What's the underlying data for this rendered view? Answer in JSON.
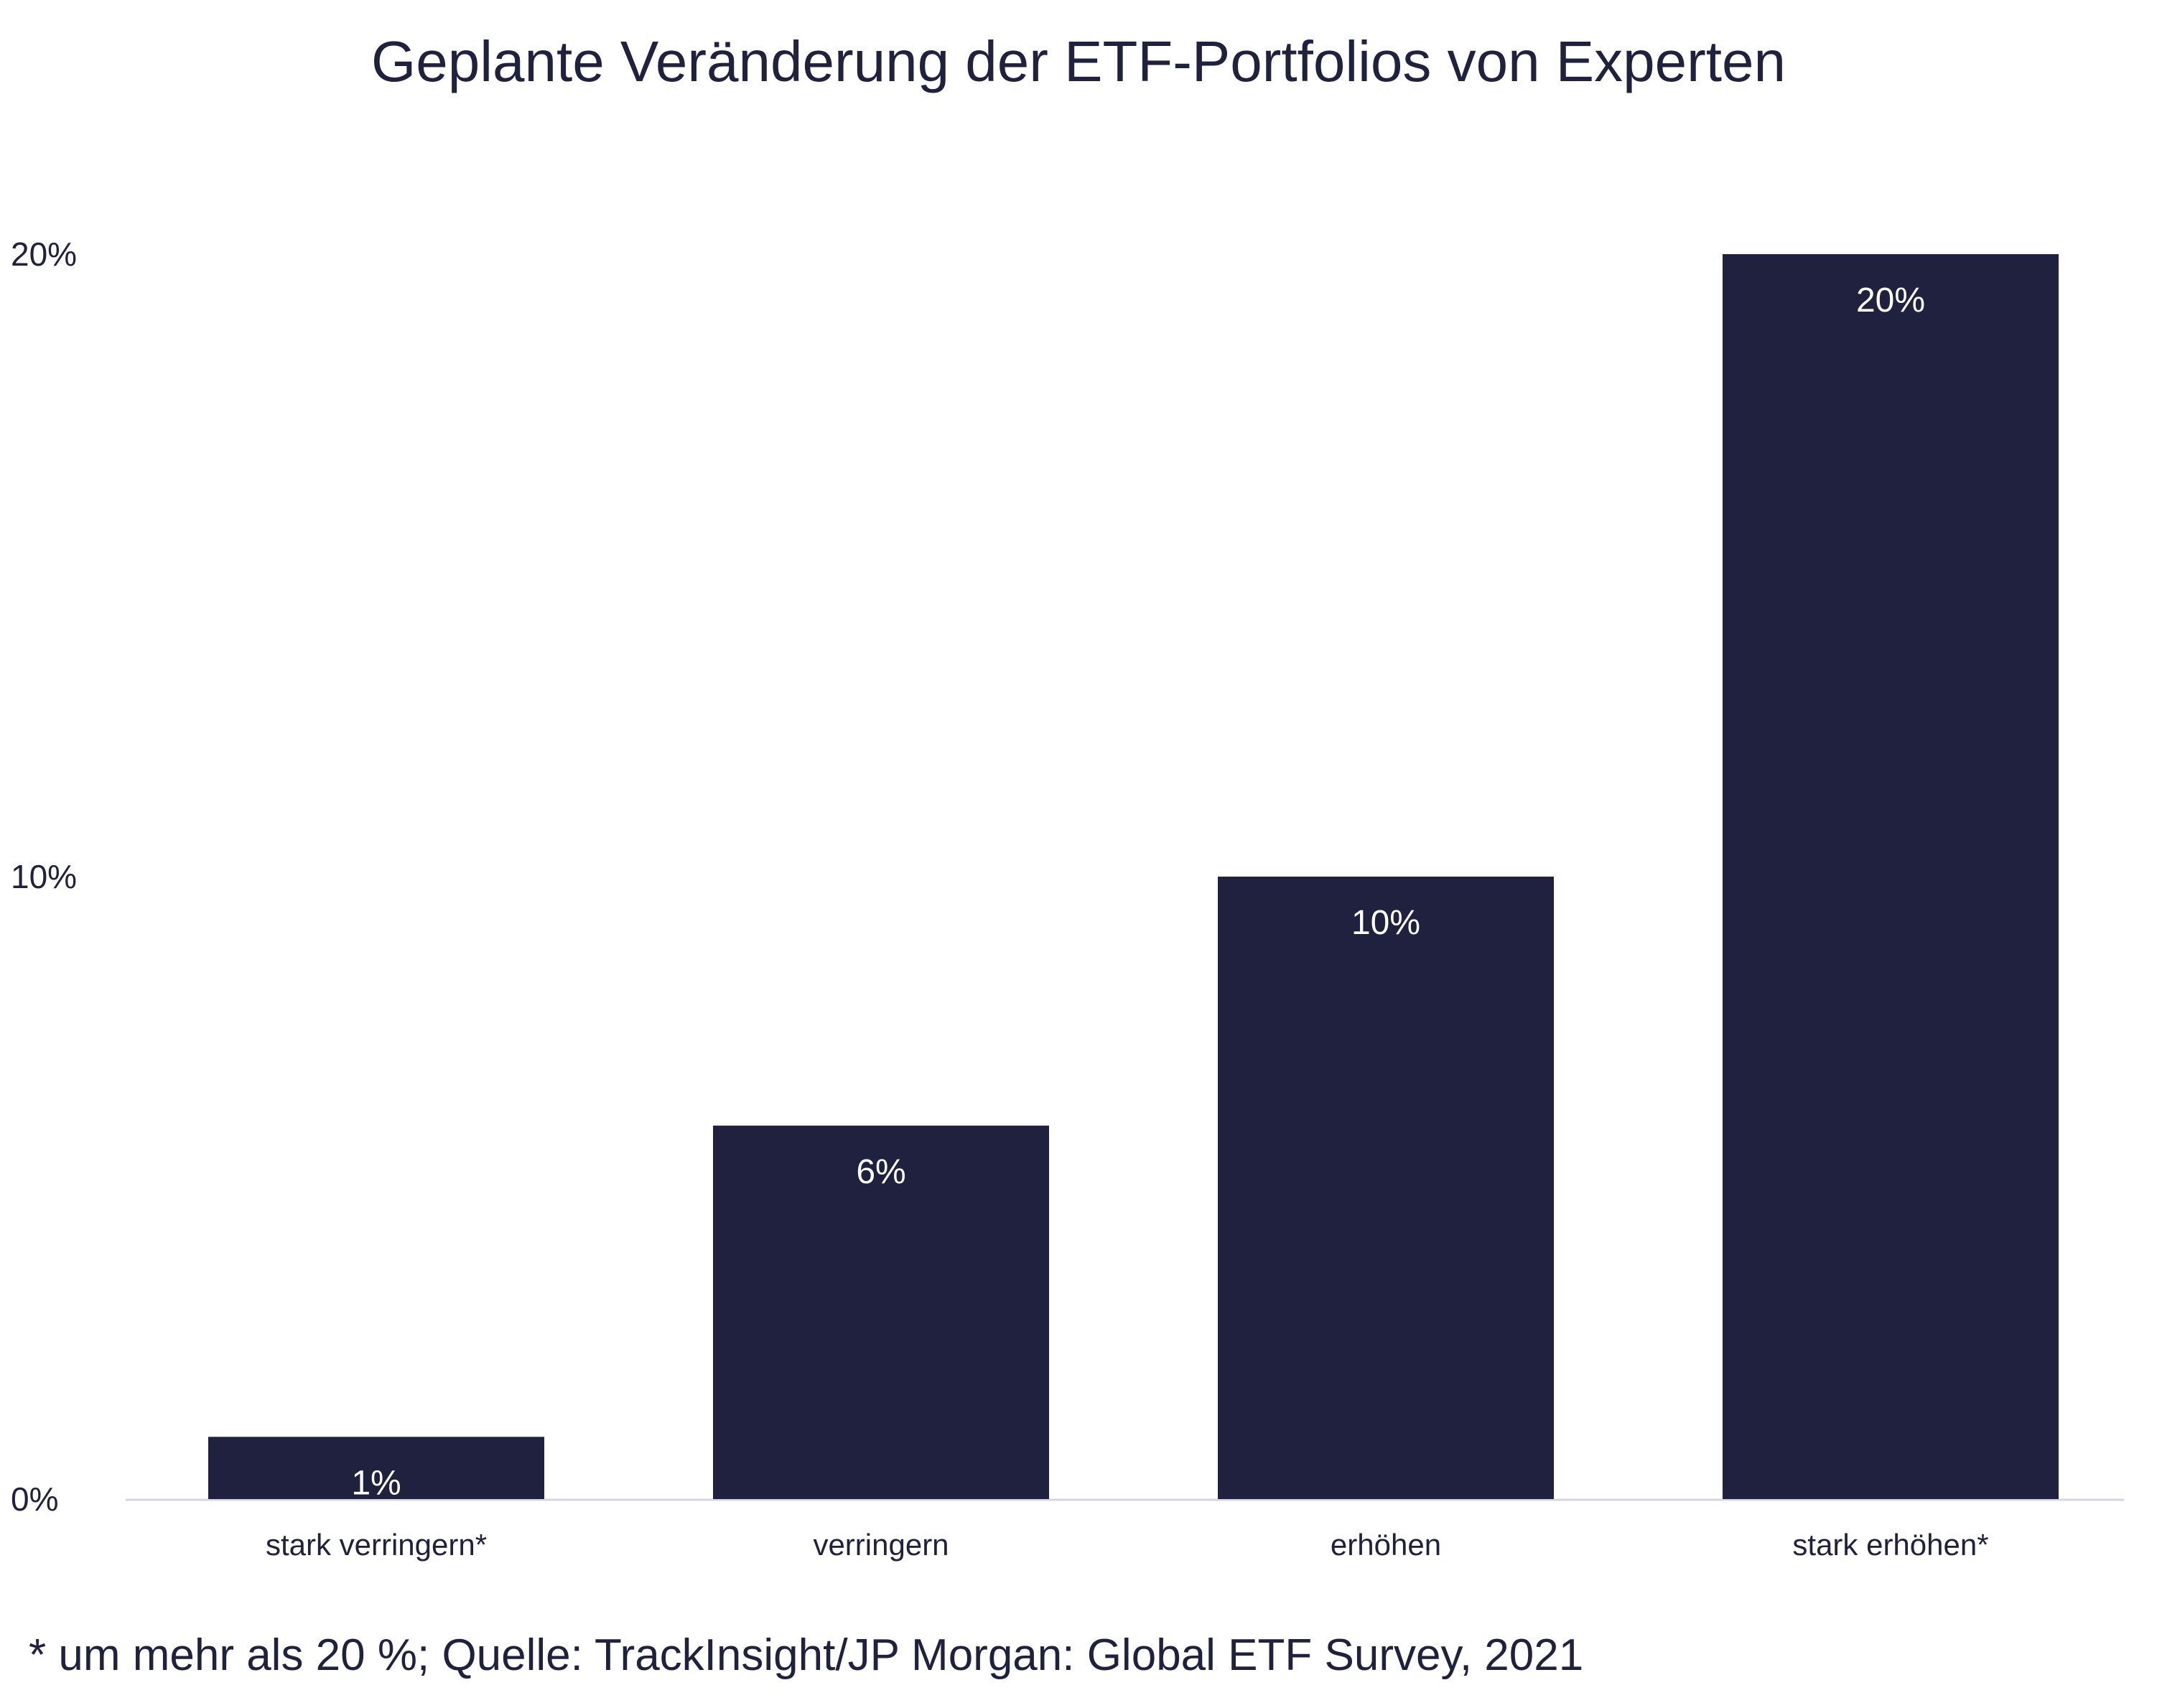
{
  "chart_data": {
    "type": "bar",
    "title": "Geplante Veränderung der ETF-Portfolios von Experten",
    "categories": [
      "stark verringern*",
      "verringern",
      "erhöhen",
      "stark erhöhen*"
    ],
    "values": [
      1,
      6,
      10,
      20
    ],
    "data_labels": [
      "1%",
      "6%",
      "10%",
      "20%"
    ],
    "yticks": [
      0,
      10,
      20
    ],
    "ytick_labels": [
      "0%",
      "10%",
      "20%"
    ],
    "ylim": [
      0,
      20
    ],
    "xlabel": "",
    "ylabel": "",
    "grid": false,
    "bar_color": "#20213f",
    "footnote": "* um mehr als 20 %; Quelle: TrackInsight/JP Morgan: Global ETF Survey, 2021"
  }
}
